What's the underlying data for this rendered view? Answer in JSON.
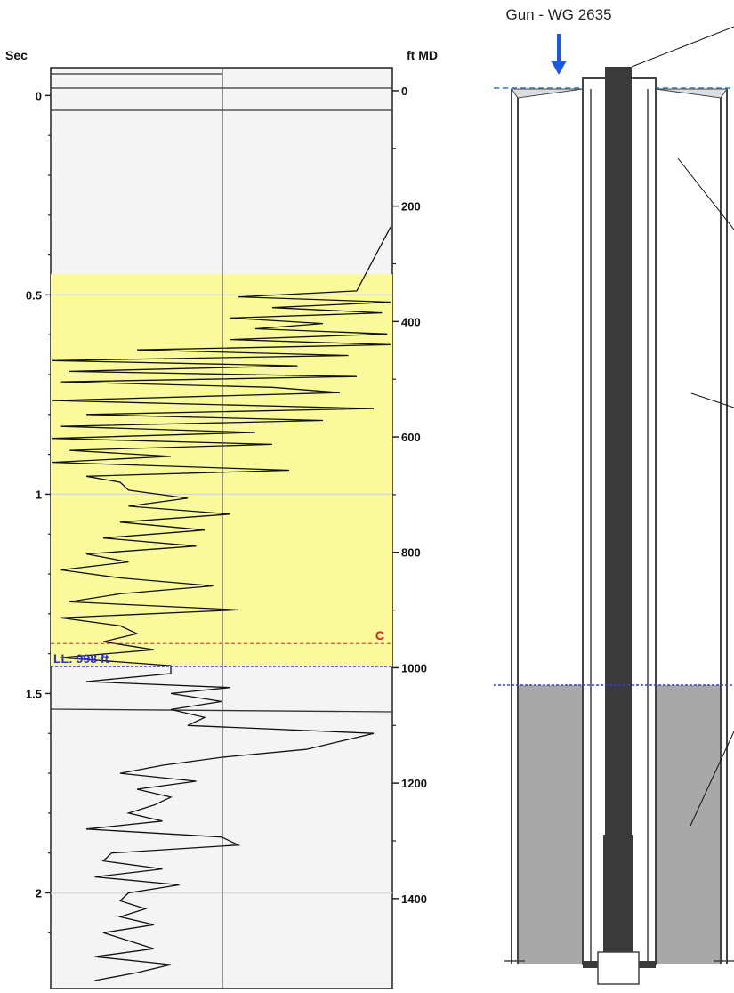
{
  "chart_data": {
    "type": "line",
    "left_axis_label": "Sec",
    "right_axis_label": "ft MD",
    "left_ticks": [
      "0",
      "0.5",
      "1",
      "1.5",
      "2"
    ],
    "left_tick_values": [
      0,
      0.5,
      1,
      1.5,
      2
    ],
    "right_ticks": [
      "0",
      "200",
      "400",
      "600",
      "800",
      "1000",
      "1200",
      "1400"
    ],
    "right_tick_values": [
      0,
      200,
      400,
      600,
      800,
      1000,
      1200,
      1400
    ],
    "ylim_sec": [
      -0.07,
      2.24
    ],
    "ylim_ft": [
      -40,
      1556
    ],
    "grid_sec": [
      0.5,
      1,
      2
    ],
    "liquid_level": {
      "label": "LL: 998 ft",
      "ft": 998
    },
    "collar_marker": {
      "label": "C",
      "ft": 958
    },
    "highlight_band_ft": [
      318,
      998
    ],
    "band_color": "#fafa9a",
    "marker_color_red": "#e21c1c",
    "marker_color_blue": "#2a2af0",
    "trace": {
      "sec": [
        0.33,
        0.49,
        0.505,
        0.518,
        0.532,
        0.545,
        0.558,
        0.572,
        0.585,
        0.598,
        0.612,
        0.625,
        0.638,
        0.652,
        0.665,
        0.678,
        0.692,
        0.705,
        0.718,
        0.732,
        0.745,
        0.765,
        0.785,
        0.8,
        0.815,
        0.83,
        0.845,
        0.86,
        0.875,
        0.89,
        0.905,
        0.92,
        0.94,
        0.955,
        0.97,
        0.99,
        1.01,
        1.03,
        1.05,
        1.07,
        1.09,
        1.11,
        1.13,
        1.15,
        1.17,
        1.19,
        1.21,
        1.23,
        1.25,
        1.27,
        1.29,
        1.31,
        1.33,
        1.35,
        1.37,
        1.39,
        1.41,
        1.43,
        1.45,
        1.47,
        1.485,
        1.5,
        1.52,
        1.54,
        1.56,
        1.58,
        1.6,
        1.62,
        1.64,
        1.66,
        1.68,
        1.7,
        1.72,
        1.74,
        1.76,
        1.78,
        1.8,
        1.82,
        1.84,
        1.86,
        1.88,
        1.9,
        1.92,
        1.94,
        1.96,
        1.98,
        2,
        2.02,
        2.04,
        2.06,
        2.08,
        2.1,
        2.12,
        2.14,
        2.16,
        2.18,
        2.2,
        2.22
      ],
      "amp": [
        1,
        0.8,
        0.1,
        1,
        0.3,
        0.95,
        0.05,
        0.6,
        0.2,
        0.98,
        0.05,
        1,
        -0.5,
        0.75,
        -1,
        0.45,
        -0.9,
        0.8,
        -0.95,
        0.3,
        0.7,
        -1,
        0.9,
        -0.8,
        0.6,
        -0.95,
        0.2,
        -1,
        0.3,
        -0.9,
        -0.3,
        -1,
        0.4,
        -0.8,
        -0.6,
        -0.55,
        -0.2,
        -0.55,
        0.05,
        -0.6,
        -0.1,
        -0.7,
        -0.15,
        -0.8,
        -0.55,
        -0.95,
        -0.6,
        -0.05,
        -0.6,
        -0.9,
        0.1,
        -0.95,
        -0.6,
        -0.5,
        -0.7,
        -0.4,
        -0.95,
        -0.3,
        -0.3,
        -0.8,
        0.05,
        -0.3,
        0.0,
        -0.3,
        -0.1,
        -0.2,
        0.9,
        0.7,
        0.5,
        0.0,
        -0.35,
        -0.6,
        -0.15,
        -0.5,
        -0.3,
        -0.4,
        -0.55,
        -0.35,
        -0.8,
        0.0,
        0.1,
        -0.65,
        -0.7,
        -0.35,
        -0.75,
        -0.25,
        -0.55,
        -0.6,
        -0.45,
        -0.6,
        -0.4,
        -0.7,
        -0.55,
        -0.4,
        -0.75,
        -0.3,
        -0.5,
        -0.75
      ]
    }
  },
  "wellbore": {
    "gun_label": "Gun - WG 2635",
    "casing_color": "#3a3a3a",
    "fluid_color": "#a8a8a8",
    "surface_line_color": "#5a9be0",
    "ll_line_color": "#3b3bd8",
    "arrow_color": "#1a58e8"
  }
}
